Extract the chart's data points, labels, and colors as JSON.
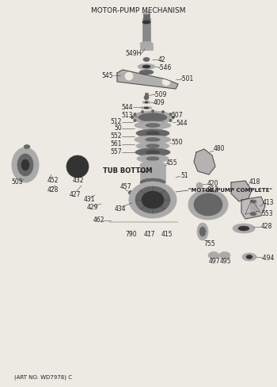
{
  "title": "MOTOR-PUMP MECHANISM",
  "footer": "(ART NO. WD7978) C",
  "bg_color": "#ede9e3",
  "line_color": "#444444",
  "text_color": "#222222",
  "gray1": "#888888",
  "gray2": "#aaaaaa",
  "gray3": "#666666",
  "gray_dark": "#333333"
}
